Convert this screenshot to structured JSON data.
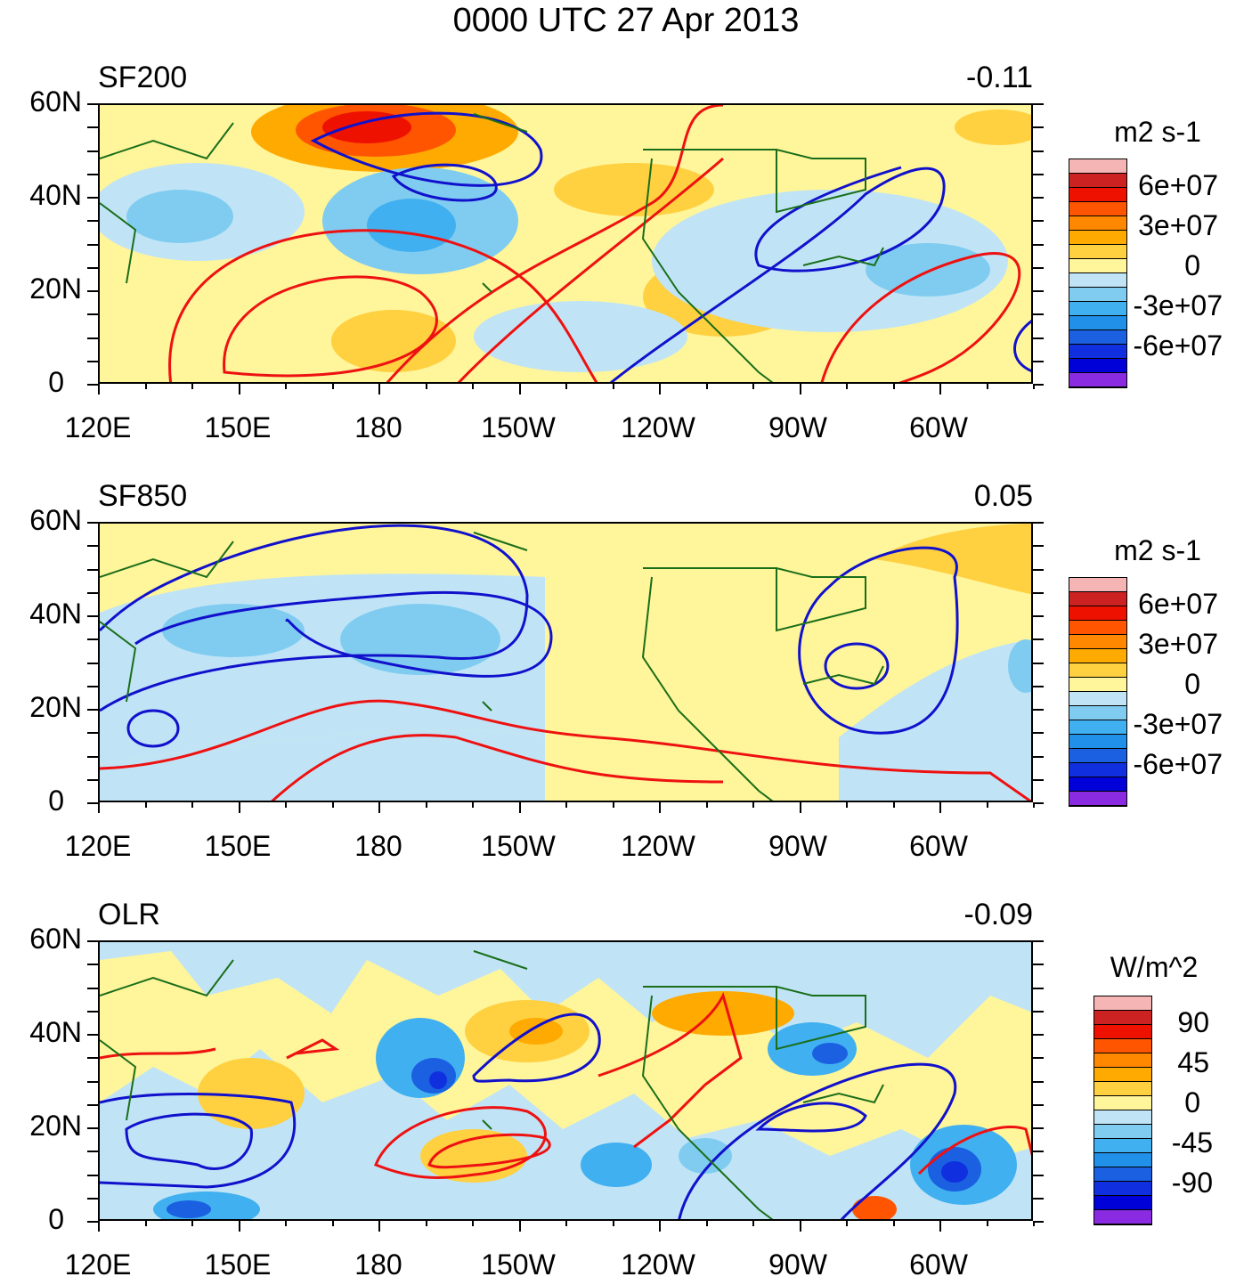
{
  "title": "0000 UTC 27 Apr 2013",
  "lat_labels": [
    "60N",
    "40N",
    "20N",
    "0"
  ],
  "lon_labels": [
    "120E",
    "150E",
    "180",
    "150W",
    "120W",
    "90W",
    "60W"
  ],
  "panels": [
    {
      "name": "SF200",
      "value": "-0.11",
      "units": "m2 s-1",
      "cbar_labels": [
        "6e+07",
        "3e+07",
        "0",
        "-3e+07",
        "-6e+07"
      ]
    },
    {
      "name": "SF850",
      "value": "0.05",
      "units": "m2 s-1",
      "cbar_labels": [
        "6e+07",
        "3e+07",
        "0",
        "-3e+07",
        "-6e+07"
      ]
    },
    {
      "name": "OLR",
      "value": "-0.09",
      "units": "W/m^2",
      "cbar_labels": [
        "90",
        "45",
        "0",
        "-45",
        "-90"
      ]
    }
  ],
  "colors": {
    "palette": [
      "#f5b5b5",
      "#cc2222",
      "#ee1100",
      "#ff5500",
      "#ff8800",
      "#ffaa00",
      "#ffd040",
      "#fff59a",
      "#c0e4f6",
      "#80ccf0",
      "#40b0f0",
      "#2090e8",
      "#1a60e0",
      "#1030e0",
      "#0000d8",
      "#8a2be2"
    ],
    "positive_contour": "#ee1111",
    "negative_contour": "#1111cc",
    "coast": "#1a6e1a"
  }
}
